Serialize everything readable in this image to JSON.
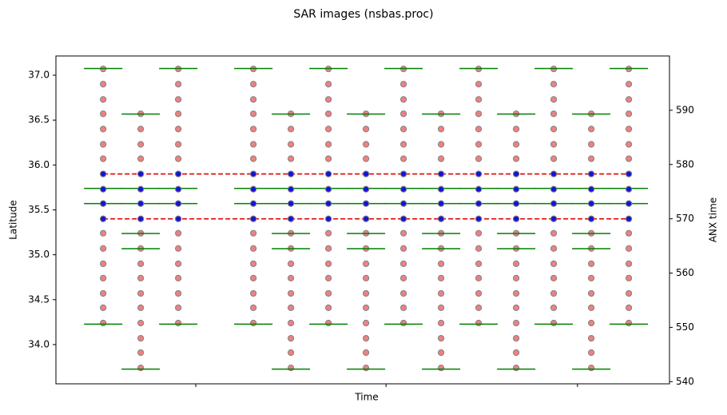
{
  "chart_data": {
    "type": "scatter",
    "title": "SAR images (nsbas.proc)",
    "x_label": "Time",
    "y_label": "Latitude",
    "y2_label": "ANX time",
    "xlim": [
      -15.1,
      181
    ],
    "xticks": [
      29.6,
      90.4,
      151.6
    ],
    "ylim": [
      33.563,
      37.214
    ],
    "yticks": [
      {
        "value": 34,
        "label": "34.0"
      },
      34.5,
      {
        "value": 35,
        "label": "35.0"
      },
      35.5,
      {
        "value": 36,
        "label": "36.0"
      },
      36.5,
      {
        "value": 37,
        "label": "37.0"
      }
    ],
    "y2lim": [
      539.6,
      600
    ],
    "y2ticks": [
      540,
      550,
      560,
      570,
      580,
      590
    ],
    "tracks": [
      {
        "times": [
          0,
          24,
          48,
          72,
          96,
          120,
          144,
          168
        ],
        "lats": [
          37.07,
          36.9,
          36.73,
          36.57,
          36.4,
          36.23,
          36.07,
          35.9,
          35.73,
          35.57,
          35.4,
          35.24,
          35.07,
          34.9,
          34.74,
          34.57,
          34.41,
          34.24
        ],
        "anx": [
          597.7,
          575.6,
          572.8,
          550.6
        ]
      },
      {
        "times": [
          12,
          60,
          84,
          108,
          132,
          156
        ],
        "lats": [
          36.57,
          36.4,
          36.23,
          36.07,
          35.9,
          35.73,
          35.57,
          35.4,
          35.24,
          35.07,
          34.9,
          34.74,
          34.57,
          34.41,
          34.24,
          34.07,
          33.91,
          33.74
        ],
        "anx": [
          589.3,
          575.6,
          572.8,
          567.3,
          564.5,
          542.3
        ]
      }
    ],
    "selected_lats": [
      35.9,
      35.73,
      35.57,
      35.4
    ],
    "bounds": [
      35.9,
      35.4
    ],
    "point_color": "#f08080",
    "selected_color": "#1414d8",
    "anx_color": "#008000",
    "bound_color": "#e00000"
  }
}
